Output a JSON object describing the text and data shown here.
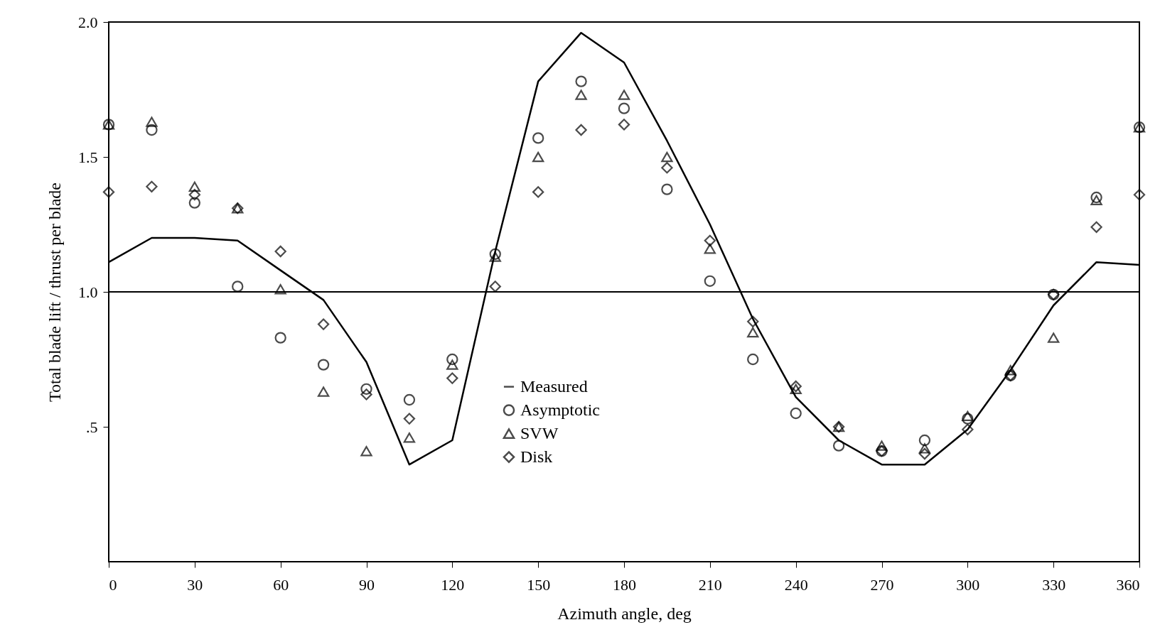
{
  "chart_data": {
    "type": "scatter",
    "xlabel": "Azimuth angle, deg",
    "ylabel": "Total blade lift / thrust per blade",
    "x": [
      0,
      15,
      30,
      45,
      60,
      75,
      90,
      105,
      120,
      135,
      150,
      165,
      180,
      195,
      210,
      225,
      240,
      255,
      270,
      285,
      300,
      315,
      330,
      345,
      360
    ],
    "xlim": [
      0,
      360
    ],
    "xticks": [
      0,
      30,
      60,
      90,
      120,
      150,
      180,
      210,
      240,
      270,
      300,
      330,
      360
    ],
    "ylim": [
      0,
      2
    ],
    "yticks": [
      {
        "value": 0.5,
        "label": ".5"
      },
      {
        "value": 1,
        "label": "1.0"
      },
      {
        "value": 1.5,
        "label": "1.5"
      },
      {
        "value": 2,
        "label": "2.0"
      }
    ],
    "grid": false,
    "legend": "bottom",
    "ref_lines": [
      {
        "axis": "y",
        "value": 1,
        "color": "#000000"
      }
    ],
    "series": [
      {
        "name": "Measured",
        "type": "line",
        "marker": "none",
        "color": "#000000",
        "values": [
          1.11,
          1.2,
          1.2,
          1.19,
          1.08,
          0.97,
          0.74,
          0.36,
          0.45,
          1.15,
          1.78,
          1.96,
          1.85,
          1.56,
          1.25,
          0.9,
          0.61,
          0.45,
          0.36,
          0.36,
          0.49,
          0.71,
          0.95,
          1.11,
          1.1
        ]
      },
      {
        "name": "Asymptotic",
        "marker": "circle",
        "color": "#000000",
        "values": [
          1.62,
          1.6,
          1.33,
          1.02,
          0.83,
          0.73,
          0.64,
          0.6,
          0.75,
          1.14,
          1.57,
          1.78,
          1.68,
          1.38,
          1.04,
          0.75,
          0.55,
          0.43,
          0.41,
          0.45,
          0.53,
          0.69,
          0.99,
          1.35,
          1.61
        ]
      },
      {
        "name": "SVW",
        "marker": "triangle",
        "color": "#000000",
        "values": [
          1.62,
          1.63,
          1.39,
          1.31,
          1.01,
          0.63,
          0.41,
          0.46,
          0.73,
          1.13,
          1.5,
          1.73,
          1.73,
          1.5,
          1.16,
          0.85,
          0.64,
          0.5,
          0.43,
          0.42,
          0.54,
          0.71,
          0.83,
          1.34,
          1.61
        ]
      },
      {
        "name": "Disk",
        "marker": "diamond",
        "color": "#000000",
        "values": [
          1.37,
          1.39,
          1.36,
          1.31,
          1.15,
          0.88,
          0.62,
          0.53,
          0.68,
          1.02,
          1.37,
          1.6,
          1.62,
          1.46,
          1.19,
          0.89,
          0.65,
          0.5,
          0.41,
          0.4,
          0.49,
          0.69,
          0.99,
          1.24,
          1.36
        ]
      }
    ]
  }
}
